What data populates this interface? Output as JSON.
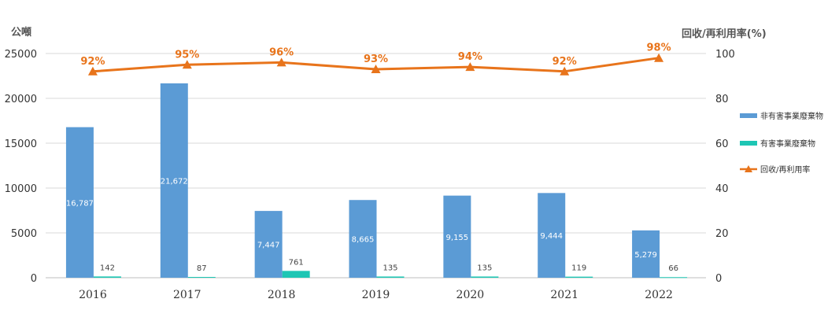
{
  "chart_data": {
    "type": "bar",
    "categories": [
      "2016",
      "2017",
      "2018",
      "2019",
      "2020",
      "2021",
      "2022"
    ],
    "y_left_label": "公噸",
    "y_right_label": "回收/再利用率(%)",
    "y_left_ticks": [
      "0",
      "5000",
      "10000",
      "15000",
      "20000",
      "25000"
    ],
    "y_right_ticks": [
      "0",
      "20",
      "40",
      "60",
      "80",
      "100"
    ],
    "ylim_left": [
      0,
      25000
    ],
    "ylim_right": [
      0,
      100
    ],
    "grid": true,
    "legend_position": "right",
    "series": [
      {
        "name": "非有害事業廢棄物",
        "type": "bar",
        "axis": "left",
        "color": "#5b9bd5",
        "values": [
          16787,
          21672,
          7447,
          8665,
          9155,
          9444,
          5279
        ],
        "labels": [
          "16,787",
          "21,672",
          "7,447",
          "8,665",
          "9,155",
          "9,444",
          "5,279"
        ]
      },
      {
        "name": "有害事業廢棄物",
        "type": "bar",
        "axis": "left",
        "color": "#1ec6b4",
        "values": [
          142,
          87,
          761,
          135,
          135,
          119,
          66
        ],
        "labels": [
          "142",
          "87",
          "761",
          "135",
          "135",
          "119",
          "66"
        ]
      },
      {
        "name": "回收/再利用率",
        "type": "line",
        "axis": "right",
        "color": "#e8741b",
        "values": [
          92,
          95,
          96,
          93,
          94,
          92,
          98
        ],
        "labels": [
          "92%",
          "95%",
          "96%",
          "93%",
          "94%",
          "92%",
          "98%"
        ]
      }
    ]
  }
}
